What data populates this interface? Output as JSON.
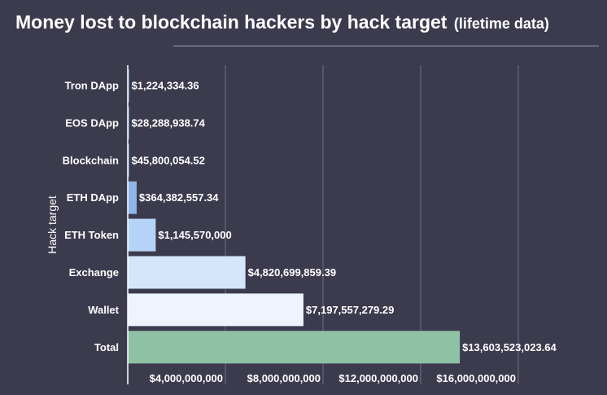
{
  "header": {
    "title": "Money lost to blockchain hackers by hack target",
    "subtitle": "(lifetime data)"
  },
  "chart_data": {
    "type": "bar",
    "orientation": "horizontal",
    "ylabel": "Hack target",
    "xlabel": "",
    "categories": [
      "Tron DApp",
      "EOS DApp",
      "Blockchain",
      "ETH DApp",
      "ETH Token",
      "Exchange",
      "Wallet",
      "Total"
    ],
    "values": [
      1224334.36,
      28288938.74,
      45800054.52,
      364382557.34,
      1145570000,
      4820699859.39,
      7197557279.29,
      13603523023.64
    ],
    "value_labels": [
      "$1,224,334.36",
      "$28,288,938.74",
      "$45,800,054.52",
      "$364,382,557.34",
      "$1,145,570,000",
      "$4,820,699,859.39",
      "$7,197,557,279.29",
      "$13,603,523,023.64"
    ],
    "colors": [
      "#8fb6e8",
      "#8fb6e8",
      "#8fb6e8",
      "#8fb6e8",
      "#b5d3f8",
      "#d5e6fb",
      "#eef4fd",
      "#8fc1a5"
    ],
    "xticks": [
      4000000000,
      8000000000,
      12000000000,
      16000000000
    ],
    "xtick_labels": [
      "$4,000,000,000",
      "$8,000,000,000",
      "$12,000,000,000",
      "$16,000,000,000"
    ],
    "xlim": [
      0,
      18000000000
    ],
    "grid": true,
    "legend": "none"
  }
}
